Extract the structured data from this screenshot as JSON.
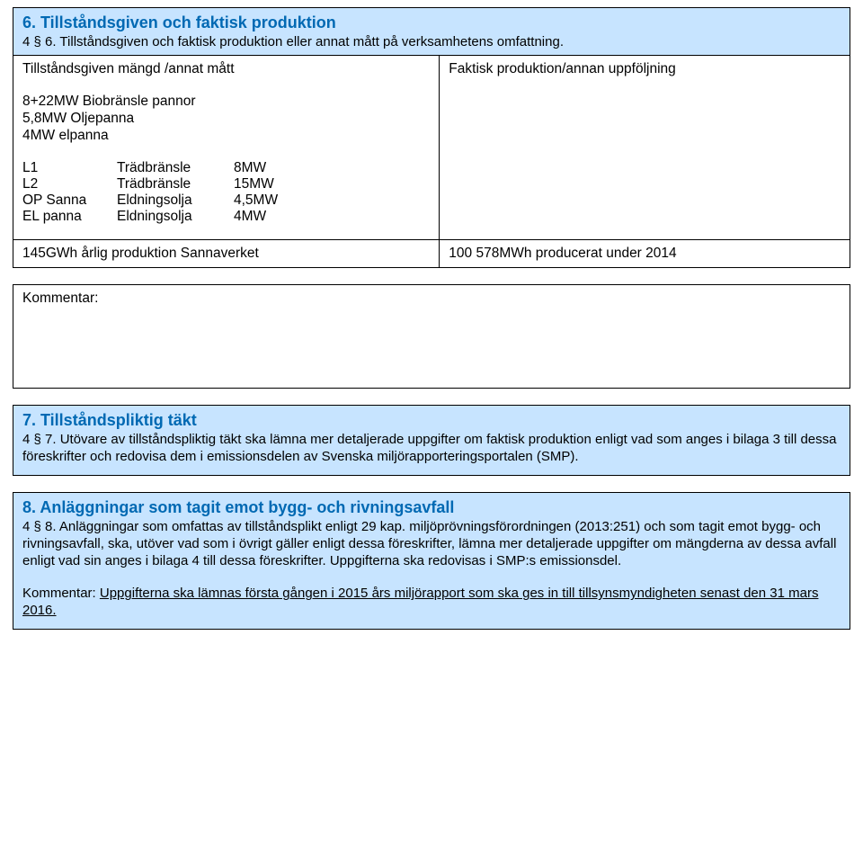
{
  "section6": {
    "title": "6. Tillståndsgiven och faktisk produktion",
    "subtitle": "4 § 6. Tillståndsgiven och faktisk produktion eller annat mått på verksamhetens omfattning.",
    "left_label": "Tillståndsgiven mängd /annat mått",
    "right_label": "Faktisk produktion/annan uppföljning",
    "plants": [
      "8+22MW Biobränsle pannor",
      "5,8MW Oljepanna",
      "4MW elpanna"
    ],
    "units": [
      {
        "id": "L1",
        "fuel": "Trädbränsle",
        "power": "8MW"
      },
      {
        "id": "L2",
        "fuel": "Trädbränsle",
        "power": "15MW"
      },
      {
        "id": "OP Sanna",
        "fuel": "Eldningsolja",
        "power": "4,5MW"
      },
      {
        "id": "EL panna",
        "fuel": "Eldningsolja",
        "power": "4MW"
      }
    ],
    "row2_left": "145GWh årlig produktion Sannaverket",
    "row2_right": "100 578MWh producerat under 2014"
  },
  "comment_label": "Kommentar:",
  "section7": {
    "title": "7. Tillståndspliktig täkt",
    "body": "4 § 7. Utövare av tillståndspliktig täkt ska lämna mer detaljerade uppgifter om faktisk produktion enligt vad som anges i bilaga 3 till dessa föreskrifter och redovisa dem i emissionsdelen av Svenska miljörapporteringsportalen (SMP)."
  },
  "section8": {
    "title": "8. Anläggningar som tagit emot bygg- och rivningsavfall",
    "body": "4 § 8. Anläggningar som omfattas av tillståndsplikt enligt 29 kap. miljöprövningsförordningen (2013:251) och som tagit emot bygg- och rivningsavfall, ska, utöver vad som i övrigt gäller enligt dessa föreskrifter, lämna mer detaljerade uppgifter om mängderna av dessa avfall enligt vad sin anges i bilaga 4 till dessa föreskrifter. Uppgifterna ska redovisas i SMP:s emissionsdel.",
    "note_prefix": "Kommentar: ",
    "note_text": "Uppgifterna ska lämnas första gången i 2015 års miljörapport som ska ges in till tillsynsmyndigheten senast den 31 mars 2016."
  }
}
